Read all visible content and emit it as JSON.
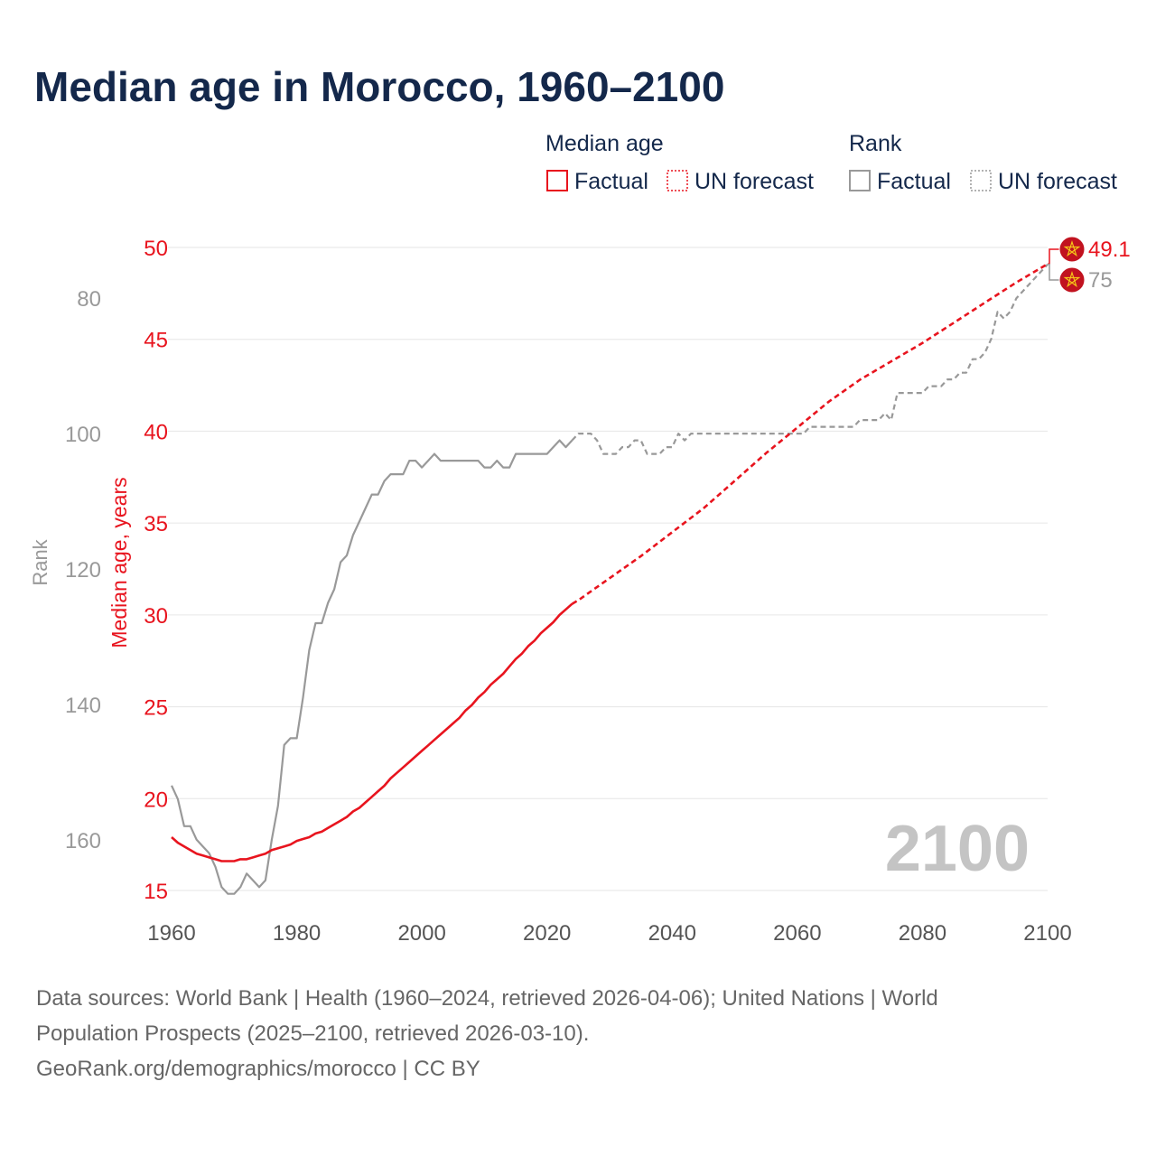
{
  "colors": {
    "title": "#14284b",
    "median": "#e8141e",
    "rank": "#999999",
    "grid": "#e6e6e6",
    "year_watermark": "#c4c4c4",
    "source_text": "#666666",
    "flag_red": "#c1121f",
    "flag_star": "#f5c518"
  },
  "chart_data": {
    "type": "line",
    "title": "Median age in Morocco, 1960–2100",
    "xlabel": "",
    "ylabel": "Median age, years",
    "y2label": "Rank",
    "xlim": [
      1960,
      2100
    ],
    "ylim": [
      15,
      50
    ],
    "y2lim_inverted": [
      167.5,
      72.5
    ],
    "x_ticks": [
      1960,
      1980,
      2000,
      2020,
      2040,
      2060,
      2080,
      2100
    ],
    "y_ticks": [
      15,
      20,
      25,
      30,
      35,
      40,
      45,
      50
    ],
    "y2_ticks": [
      80,
      100,
      120,
      140,
      160
    ],
    "legend": {
      "groups": [
        {
          "title": "Median age",
          "items": [
            "Factual",
            "UN forecast"
          ]
        },
        {
          "title": "Rank",
          "items": [
            "Factual",
            "UN forecast"
          ]
        }
      ]
    },
    "current_year_label": "2100",
    "end_labels": {
      "median": "49.1",
      "rank": "75"
    },
    "series": [
      {
        "name": "Median age — Factual",
        "axis": "left",
        "style": "solid",
        "points": [
          [
            1960,
            17.9
          ],
          [
            1961,
            17.6
          ],
          [
            1962,
            17.4
          ],
          [
            1963,
            17.2
          ],
          [
            1964,
            17.0
          ],
          [
            1965,
            16.9
          ],
          [
            1966,
            16.8
          ],
          [
            1967,
            16.7
          ],
          [
            1968,
            16.6
          ],
          [
            1969,
            16.6
          ],
          [
            1970,
            16.6
          ],
          [
            1971,
            16.7
          ],
          [
            1972,
            16.7
          ],
          [
            1973,
            16.8
          ],
          [
            1974,
            16.9
          ],
          [
            1975,
            17.0
          ],
          [
            1976,
            17.2
          ],
          [
            1977,
            17.3
          ],
          [
            1978,
            17.4
          ],
          [
            1979,
            17.5
          ],
          [
            1980,
            17.7
          ],
          [
            1981,
            17.8
          ],
          [
            1982,
            17.9
          ],
          [
            1983,
            18.1
          ],
          [
            1984,
            18.2
          ],
          [
            1985,
            18.4
          ],
          [
            1986,
            18.6
          ],
          [
            1987,
            18.8
          ],
          [
            1988,
            19.0
          ],
          [
            1989,
            19.3
          ],
          [
            1990,
            19.5
          ],
          [
            1991,
            19.8
          ],
          [
            1992,
            20.1
          ],
          [
            1993,
            20.4
          ],
          [
            1994,
            20.7
          ],
          [
            1995,
            21.1
          ],
          [
            1996,
            21.4
          ],
          [
            1997,
            21.7
          ],
          [
            1998,
            22.0
          ],
          [
            1999,
            22.3
          ],
          [
            2000,
            22.6
          ],
          [
            2001,
            22.9
          ],
          [
            2002,
            23.2
          ],
          [
            2003,
            23.5
          ],
          [
            2004,
            23.8
          ],
          [
            2005,
            24.1
          ],
          [
            2006,
            24.4
          ],
          [
            2007,
            24.8
          ],
          [
            2008,
            25.1
          ],
          [
            2009,
            25.5
          ],
          [
            2010,
            25.8
          ],
          [
            2011,
            26.2
          ],
          [
            2012,
            26.5
          ],
          [
            2013,
            26.8
          ],
          [
            2014,
            27.2
          ],
          [
            2015,
            27.6
          ],
          [
            2016,
            27.9
          ],
          [
            2017,
            28.3
          ],
          [
            2018,
            28.6
          ],
          [
            2019,
            29.0
          ],
          [
            2020,
            29.3
          ],
          [
            2021,
            29.6
          ],
          [
            2022,
            30.0
          ],
          [
            2023,
            30.3
          ],
          [
            2024,
            30.6
          ]
        ]
      },
      {
        "name": "Median age — UN forecast",
        "axis": "left",
        "style": "dashed",
        "points": [
          [
            2024,
            30.6
          ],
          [
            2025,
            30.8
          ],
          [
            2030,
            32.0
          ],
          [
            2035,
            33.2
          ],
          [
            2040,
            34.5
          ],
          [
            2045,
            35.8
          ],
          [
            2050,
            37.3
          ],
          [
            2055,
            38.8
          ],
          [
            2060,
            40.2
          ],
          [
            2065,
            41.6
          ],
          [
            2070,
            42.8
          ],
          [
            2075,
            43.8
          ],
          [
            2080,
            44.8
          ],
          [
            2085,
            45.9
          ],
          [
            2090,
            47.0
          ],
          [
            2095,
            48.1
          ],
          [
            2100,
            49.1
          ]
        ]
      },
      {
        "name": "Rank — Factual",
        "axis": "right",
        "style": "solid",
        "points": [
          [
            1960,
            152
          ],
          [
            1961,
            154
          ],
          [
            1962,
            158
          ],
          [
            1963,
            158
          ],
          [
            1964,
            160
          ],
          [
            1965,
            161
          ],
          [
            1966,
            162
          ],
          [
            1967,
            164
          ],
          [
            1968,
            167
          ],
          [
            1969,
            168
          ],
          [
            1970,
            168
          ],
          [
            1971,
            167
          ],
          [
            1972,
            165
          ],
          [
            1973,
            166
          ],
          [
            1974,
            167
          ],
          [
            1975,
            166
          ],
          [
            1976,
            160
          ],
          [
            1977,
            155
          ],
          [
            1978,
            146
          ],
          [
            1979,
            145
          ],
          [
            1980,
            145
          ],
          [
            1981,
            139
          ],
          [
            1982,
            132
          ],
          [
            1983,
            128
          ],
          [
            1984,
            128
          ],
          [
            1985,
            125
          ],
          [
            1986,
            123
          ],
          [
            1987,
            119
          ],
          [
            1988,
            118
          ],
          [
            1989,
            115
          ],
          [
            1990,
            113
          ],
          [
            1991,
            111
          ],
          [
            1992,
            109
          ],
          [
            1993,
            109
          ],
          [
            1994,
            107
          ],
          [
            1995,
            106
          ],
          [
            1996,
            106
          ],
          [
            1997,
            106
          ],
          [
            1998,
            104
          ],
          [
            1999,
            104
          ],
          [
            2000,
            105
          ],
          [
            2001,
            104
          ],
          [
            2002,
            103
          ],
          [
            2003,
            104
          ],
          [
            2004,
            104
          ],
          [
            2005,
            104
          ],
          [
            2006,
            104
          ],
          [
            2007,
            104
          ],
          [
            2008,
            104
          ],
          [
            2009,
            104
          ],
          [
            2010,
            105
          ],
          [
            2011,
            105
          ],
          [
            2012,
            104
          ],
          [
            2013,
            105
          ],
          [
            2014,
            105
          ],
          [
            2015,
            103
          ],
          [
            2016,
            103
          ],
          [
            2017,
            103
          ],
          [
            2018,
            103
          ],
          [
            2019,
            103
          ],
          [
            2020,
            103
          ],
          [
            2021,
            102
          ],
          [
            2022,
            101
          ],
          [
            2023,
            102
          ],
          [
            2024,
            101
          ]
        ]
      },
      {
        "name": "Rank — UN forecast",
        "axis": "right",
        "style": "dashed",
        "points": [
          [
            2024,
            101
          ],
          [
            2025,
            100
          ],
          [
            2026,
            100
          ],
          [
            2027,
            100
          ],
          [
            2028,
            101
          ],
          [
            2029,
            103
          ],
          [
            2030,
            103
          ],
          [
            2031,
            103
          ],
          [
            2032,
            102
          ],
          [
            2033,
            102
          ],
          [
            2034,
            101
          ],
          [
            2035,
            101
          ],
          [
            2036,
            103
          ],
          [
            2037,
            103
          ],
          [
            2038,
            103
          ],
          [
            2039,
            102
          ],
          [
            2040,
            102
          ],
          [
            2041,
            100
          ],
          [
            2042,
            101
          ],
          [
            2043,
            100
          ],
          [
            2044,
            100
          ],
          [
            2045,
            100
          ],
          [
            2050,
            100
          ],
          [
            2055,
            100
          ],
          [
            2060,
            100
          ],
          [
            2061,
            100
          ],
          [
            2062,
            99
          ],
          [
            2063,
            99
          ],
          [
            2064,
            99
          ],
          [
            2065,
            99
          ],
          [
            2066,
            99
          ],
          [
            2067,
            99
          ],
          [
            2068,
            99
          ],
          [
            2069,
            99
          ],
          [
            2070,
            98
          ],
          [
            2071,
            98
          ],
          [
            2072,
            98
          ],
          [
            2073,
            98
          ],
          [
            2074,
            97
          ],
          [
            2075,
            98
          ],
          [
            2076,
            94
          ],
          [
            2077,
            94
          ],
          [
            2078,
            94
          ],
          [
            2079,
            94
          ],
          [
            2080,
            94
          ],
          [
            2081,
            93
          ],
          [
            2082,
            93
          ],
          [
            2083,
            93
          ],
          [
            2084,
            92
          ],
          [
            2085,
            92
          ],
          [
            2086,
            91
          ],
          [
            2087,
            91
          ],
          [
            2088,
            89
          ],
          [
            2089,
            89
          ],
          [
            2090,
            88
          ],
          [
            2091,
            86
          ],
          [
            2092,
            82
          ],
          [
            2093,
            83
          ],
          [
            2094,
            82
          ],
          [
            2095,
            80
          ],
          [
            2096,
            79
          ],
          [
            2097,
            78
          ],
          [
            2098,
            77
          ],
          [
            2099,
            76
          ],
          [
            2100,
            75
          ]
        ]
      }
    ]
  },
  "footer": {
    "source_line1": "Data sources: World Bank | Health (1960–2024, retrieved 2026-04-06); United Nations | World",
    "source_line2": "Population Prospects (2025–2100, retrieved 2026-03-10).",
    "attribution": "GeoRank.org/demographics/morocco | CC BY"
  }
}
